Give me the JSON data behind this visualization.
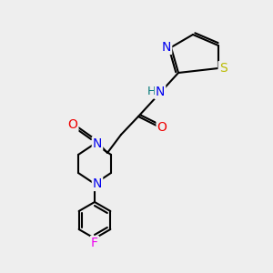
{
  "bg_color": "#eeeeee",
  "bond_color": "#000000",
  "colors": {
    "N": "#0000ee",
    "O": "#ee0000",
    "S": "#bbbb00",
    "F": "#ee00ee",
    "H": "#007777",
    "C": "#000000"
  },
  "font_size": 9,
  "fig_size": [
    3.0,
    3.0
  ],
  "dpi": 100
}
